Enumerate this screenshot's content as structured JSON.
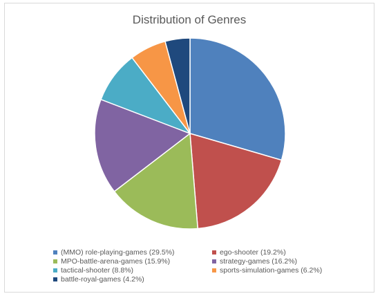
{
  "chart_data": {
    "type": "pie",
    "title": "Distribution of Genres",
    "start_angle_deg": 0,
    "direction": "clockwise",
    "slices": [
      {
        "label": "(MMO) role-playing-games (29.5%)",
        "value": 29.5,
        "color": "#4f81bd"
      },
      {
        "label": "ego-shooter (19.2%)",
        "value": 19.2,
        "color": "#c0504d"
      },
      {
        "label": "MPO-battle-arena-games (15.9%)",
        "value": 15.9,
        "color": "#9bbb59"
      },
      {
        "label": "strategy-games (16.2%)",
        "value": 16.2,
        "color": "#8064a2"
      },
      {
        "label": "tactical-shooter (8.8%)",
        "value": 8.8,
        "color": "#4bacc6"
      },
      {
        "label": "sports-simulation-games (6.2%)",
        "value": 6.2,
        "color": "#f79646"
      },
      {
        "label": "battle-royal-games (4.2%)",
        "value": 4.2,
        "color": "#1f497d"
      }
    ],
    "legend_position": "bottom",
    "legend_columns": 2
  }
}
